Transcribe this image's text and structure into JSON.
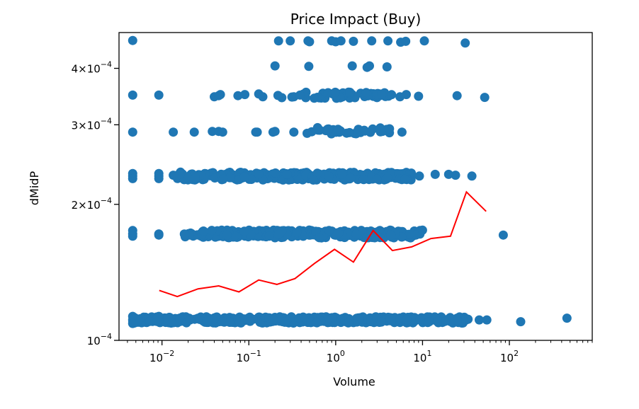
{
  "chart_data": {
    "type": "scatter",
    "title": "Price Impact (Buy)",
    "xlabel": "Volume",
    "ylabel": "dMidP",
    "xscale": "log",
    "yscale": "log",
    "xlim": [
      0.0032,
      900
    ],
    "ylim": [
      0.0001,
      0.00048
    ],
    "colors": {
      "scatter": "#1f77b4",
      "line": "#ff0000"
    },
    "x_ticks": [
      {
        "value": 0.01,
        "mantissa": "",
        "base": "10",
        "exp": "−2"
      },
      {
        "value": 0.1,
        "mantissa": "",
        "base": "10",
        "exp": "−1"
      },
      {
        "value": 1,
        "mantissa": "",
        "base": "10",
        "exp": "0"
      },
      {
        "value": 10,
        "mantissa": "",
        "base": "10",
        "exp": "1"
      },
      {
        "value": 100,
        "mantissa": "",
        "base": "10",
        "exp": "2"
      }
    ],
    "y_ticks": [
      {
        "value": 0.0001,
        "mantissa": "",
        "base": "10",
        "exp": "−4"
      },
      {
        "value": 0.0002,
        "mantissa": "2×",
        "base": "10",
        "exp": "−4"
      },
      {
        "value": 0.0003,
        "mantissa": "3×",
        "base": "10",
        "exp": "−4"
      },
      {
        "value": 0.0004,
        "mantissa": "4×",
        "base": "10",
        "exp": "−4"
      }
    ],
    "series": [
      {
        "type": "scatter",
        "bands": [
          {
            "y": 0.000111,
            "xmin": 0.0046,
            "xmax": 0.5,
            "density": 110,
            "jitter": 0.004
          },
          {
            "y": 0.000111,
            "xmin": 0.5,
            "xmax": 35,
            "density": 110,
            "jitter": 0.004
          },
          {
            "y": 0.000172,
            "xmin": 0.018,
            "xmax": 10,
            "density": 95,
            "jitter": 0.005
          },
          {
            "y": 0.000231,
            "xmin": 0.015,
            "xmax": 7.5,
            "density": 95,
            "jitter": 0.005
          },
          {
            "y": 0.000291,
            "xmin": 0.45,
            "xmax": 4.5,
            "density": 35,
            "jitter": 0.004
          },
          {
            "y": 0.000349,
            "xmin": 0.2,
            "xmax": 4.5,
            "density": 40,
            "jitter": 0.004
          }
        ],
        "points": [
          [
            0.0046,
            0.000111
          ],
          [
            0.0046,
            0.000113
          ],
          [
            0.0046,
            0.000109
          ],
          [
            0.0092,
            0.000111
          ],
          [
            0.0092,
            0.000113
          ],
          [
            0.016,
            0.000112
          ],
          [
            0.021,
            0.000111
          ],
          [
            0.05,
            0.00011
          ],
          [
            45,
            0.000111
          ],
          [
            55,
            0.000111
          ],
          [
            135,
            0.00011
          ],
          [
            460,
            0.000112
          ],
          [
            0.0046,
            0.000172
          ],
          [
            0.0046,
            0.000175
          ],
          [
            0.0046,
            0.00017
          ],
          [
            0.0092,
            0.000172
          ],
          [
            0.0092,
            0.000171
          ],
          [
            85,
            0.000171
          ],
          [
            0.0046,
            0.000231
          ],
          [
            0.0046,
            0.000234
          ],
          [
            0.0046,
            0.000228
          ],
          [
            0.0092,
            0.000231
          ],
          [
            0.0092,
            0.000228
          ],
          [
            0.0092,
            0.000234
          ],
          [
            0.0135,
            0.000232
          ],
          [
            9.2,
            0.000231
          ],
          [
            14,
            0.000233
          ],
          [
            20,
            0.000233
          ],
          [
            24,
            0.000232
          ],
          [
            37,
            0.000231
          ],
          [
            0.0046,
            0.000289
          ],
          [
            0.0135,
            0.000289
          ],
          [
            0.0235,
            0.000289
          ],
          [
            0.038,
            0.00029
          ],
          [
            0.045,
            0.00029
          ],
          [
            0.05,
            0.000289
          ],
          [
            0.12,
            0.000289
          ],
          [
            0.125,
            0.000289
          ],
          [
            0.19,
            0.000289
          ],
          [
            0.2,
            0.00029
          ],
          [
            0.33,
            0.000289
          ],
          [
            5.8,
            0.000289
          ],
          [
            0.0046,
            0.000349
          ],
          [
            0.0092,
            0.000349
          ],
          [
            0.04,
            0.000346
          ],
          [
            0.045,
            0.000348
          ],
          [
            0.047,
            0.00035
          ],
          [
            0.075,
            0.000348
          ],
          [
            0.09,
            0.00035
          ],
          [
            0.13,
            0.000351
          ],
          [
            0.145,
            0.000346
          ],
          [
            5.5,
            0.000346
          ],
          [
            6.5,
            0.00035
          ],
          [
            9,
            0.000347
          ],
          [
            25,
            0.000348
          ],
          [
            52,
            0.000345
          ],
          [
            0.2,
            0.000405
          ],
          [
            0.49,
            0.000404
          ],
          [
            1.55,
            0.000405
          ],
          [
            2.3,
            0.000402
          ],
          [
            2.45,
            0.000405
          ],
          [
            3.9,
            0.000403
          ],
          [
            0.0046,
            0.000461
          ],
          [
            0.22,
            0.00046
          ],
          [
            0.3,
            0.00046
          ],
          [
            0.48,
            0.00046
          ],
          [
            0.5,
            0.000458
          ],
          [
            0.9,
            0.00046
          ],
          [
            1.0,
            0.000458
          ],
          [
            1.15,
            0.00046
          ],
          [
            1.6,
            0.000459
          ],
          [
            2.6,
            0.00046
          ],
          [
            4.0,
            0.00046
          ],
          [
            5.6,
            0.000457
          ],
          [
            6.4,
            0.000459
          ],
          [
            10.5,
            0.00046
          ],
          [
            31,
            0.000455
          ]
        ]
      },
      {
        "type": "line",
        "points": [
          [
            0.0093,
            0.000129
          ],
          [
            0.015,
            0.000125
          ],
          [
            0.026,
            0.00013
          ],
          [
            0.045,
            0.000132
          ],
          [
            0.077,
            0.000128
          ],
          [
            0.13,
            0.000136
          ],
          [
            0.21,
            0.000133
          ],
          [
            0.34,
            0.000137
          ],
          [
            0.57,
            0.000148
          ],
          [
            0.97,
            0.000159
          ],
          [
            1.6,
            0.000149
          ],
          [
            2.7,
            0.000175
          ],
          [
            4.5,
            0.000158
          ],
          [
            7.5,
            0.000161
          ],
          [
            12.5,
            0.000168
          ],
          [
            21,
            0.00017
          ],
          [
            32,
            0.000213
          ],
          [
            54,
            0.000193
          ]
        ]
      }
    ]
  }
}
